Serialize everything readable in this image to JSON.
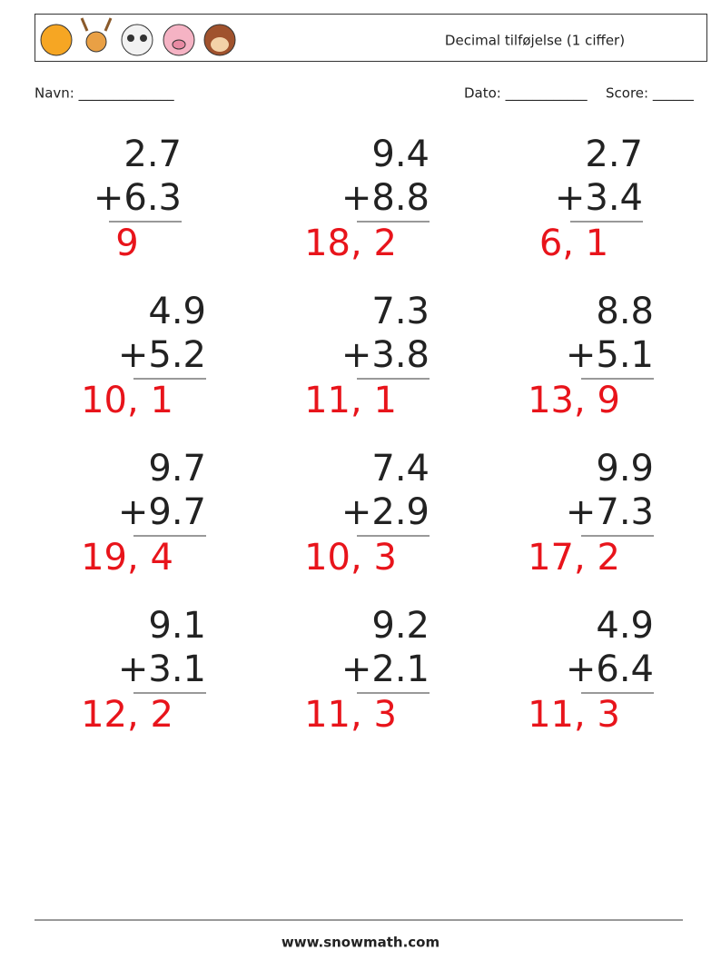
{
  "header": {
    "title": "Decimal tilføjelse (1 ciffer)"
  },
  "fields": {
    "name": "Navn: ______________",
    "date": "Dato: ____________",
    "score": "Score: ______"
  },
  "problems": [
    {
      "top": "2.7",
      "bottom": "+6.3",
      "answer": "9"
    },
    {
      "top": "9.4",
      "bottom": "+8.8",
      "answer": "18, 2"
    },
    {
      "top": "2.7",
      "bottom": "+3.4",
      "answer": "6, 1"
    },
    {
      "top": "4.9",
      "bottom": "+5.2",
      "answer": "10, 1"
    },
    {
      "top": "7.3",
      "bottom": "+3.8",
      "answer": "11, 1"
    },
    {
      "top": "8.8",
      "bottom": "+5.1",
      "answer": "13, 9"
    },
    {
      "top": "9.7",
      "bottom": "+9.7",
      "answer": "19, 4"
    },
    {
      "top": "7.4",
      "bottom": "+2.9",
      "answer": "10, 3"
    },
    {
      "top": "9.9",
      "bottom": "+7.3",
      "answer": "17, 2"
    },
    {
      "top": "9.1",
      "bottom": "+3.1",
      "answer": "12, 2"
    },
    {
      "top": "9.2",
      "bottom": "+2.1",
      "answer": "11, 3"
    },
    {
      "top": "4.9",
      "bottom": "+6.4",
      "answer": "11, 3"
    }
  ],
  "footer": {
    "site": "www.snowmath.com"
  }
}
